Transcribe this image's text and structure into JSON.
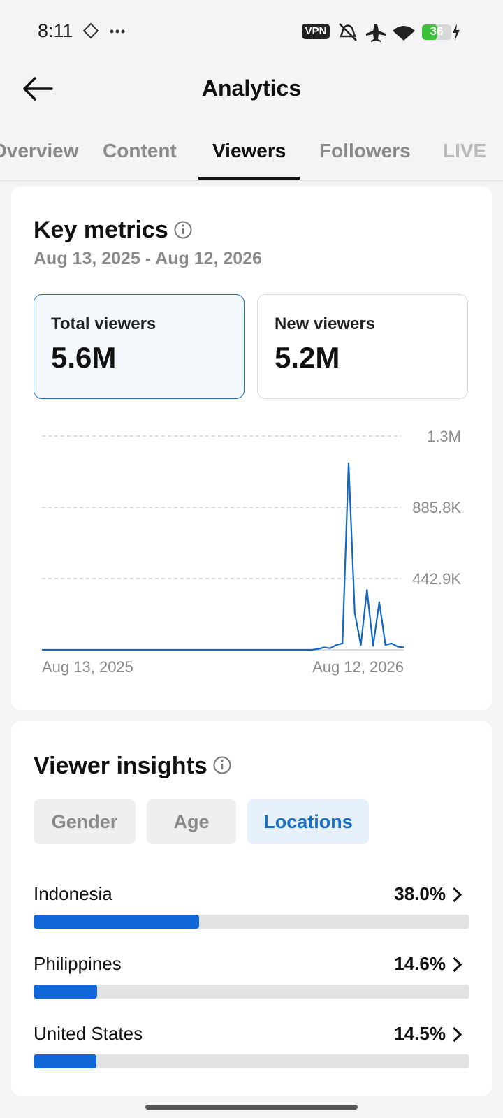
{
  "status_bar": {
    "time": "8:11",
    "vpn": "VPN",
    "battery": "36"
  },
  "header": {
    "title": "Analytics"
  },
  "tabs": [
    "Overview",
    "Content",
    "Viewers",
    "Followers",
    "LIVE"
  ],
  "active_tab": 2,
  "key_metrics": {
    "title": "Key metrics",
    "date_range": "Aug 13, 2025 - Aug 12, 2026",
    "cards": [
      {
        "label": "Total viewers",
        "value": "5.6M"
      },
      {
        "label": "New viewers",
        "value": "5.2M"
      }
    ],
    "active_card": 0
  },
  "chart_data": {
    "type": "line",
    "color": "#1167c4",
    "categories": [
      "Aug 13, 2025",
      null,
      null,
      null,
      null,
      null,
      null,
      null,
      null,
      null,
      null,
      null,
      null,
      null,
      null,
      null,
      null,
      null,
      null,
      null,
      null,
      null,
      null,
      null,
      null,
      null,
      null,
      null,
      null,
      null,
      null,
      null,
      null,
      null,
      null,
      null,
      null,
      null,
      null,
      null,
      null,
      null,
      null,
      null,
      null,
      null,
      null,
      null,
      null,
      null,
      null,
      null,
      null,
      null,
      null,
      null,
      null,
      null,
      null,
      "Aug 12, 2026"
    ],
    "values": [
      0,
      0,
      0,
      0,
      0,
      0,
      0,
      0,
      0,
      0,
      0,
      0,
      0,
      0,
      0,
      0,
      0,
      0,
      0,
      0,
      0,
      0,
      0,
      0,
      0,
      0,
      0,
      0,
      0,
      0,
      0,
      0,
      0,
      0,
      0,
      0,
      0,
      0,
      0,
      0,
      0,
      0,
      0,
      0,
      0,
      5000,
      15000,
      10000,
      30000,
      40000,
      1160000,
      230000,
      30000,
      372000,
      25000,
      297000,
      30000,
      40000,
      20000,
      15000
    ],
    "ylim": [
      0,
      1328700
    ],
    "yticks": [
      {
        "value": 442900,
        "label": "442.9K"
      },
      {
        "value": 885800,
        "label": "885.8K"
      },
      {
        "value": 1328700,
        "label": "1.3M"
      }
    ],
    "grid": true
  },
  "viewer_insights": {
    "title": "Viewer insights",
    "filters": [
      "Gender",
      "Age",
      "Locations"
    ],
    "active_filter": 2,
    "locations": [
      {
        "name": "Indonesia",
        "value": 38.0,
        "label": "38.0%"
      },
      {
        "name": "Philippines",
        "value": 14.6,
        "label": "14.6%"
      },
      {
        "name": "United States",
        "value": 14.5,
        "label": "14.5%"
      }
    ]
  }
}
